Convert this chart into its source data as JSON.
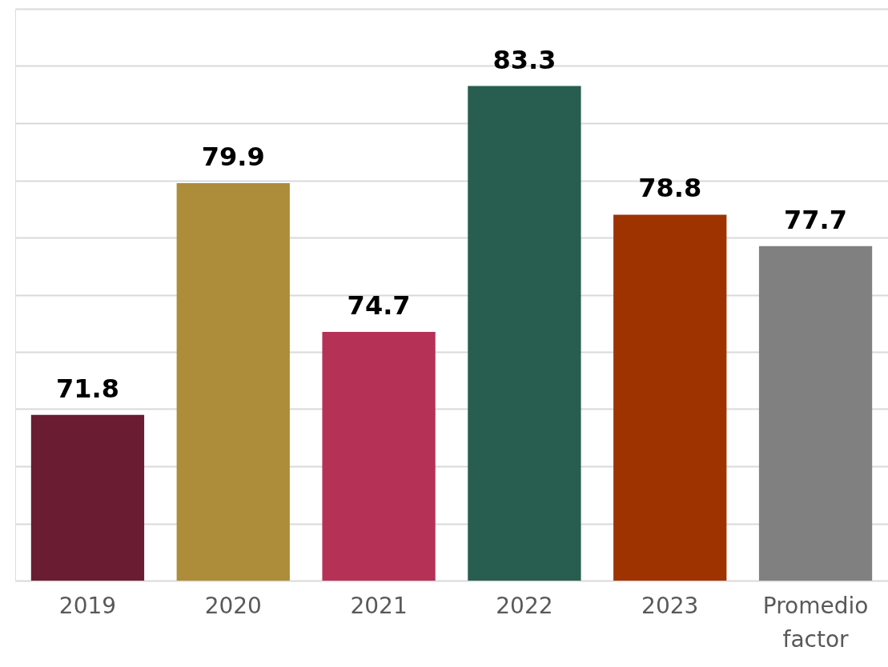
{
  "chart_data": {
    "type": "bar",
    "categories": [
      "2019",
      "2020",
      "2021",
      "2022",
      "2023",
      "Promedio factor"
    ],
    "values": [
      71.8,
      79.9,
      74.7,
      83.3,
      78.8,
      77.7
    ],
    "colors": [
      "#6a1c32",
      "#ad8d3a",
      "#b53156",
      "#285e4f",
      "#9e3300",
      "#808080"
    ],
    "ylim": [
      66,
      86
    ],
    "yticks": [
      {
        "value": 66,
        "label": null
      },
      {
        "value": 68,
        "label": null
      },
      {
        "value": 70,
        "label": null
      },
      {
        "value": 72,
        "label": null
      },
      {
        "value": 74,
        "label": null
      },
      {
        "value": 76,
        "label": null
      },
      {
        "value": 78,
        "label": null
      },
      {
        "value": 80,
        "label": null
      },
      {
        "value": 82,
        "label": null
      },
      {
        "value": 84,
        "label": null
      },
      {
        "value": 86,
        "label": null
      }
    ],
    "grid": "y",
    "data_labels": true,
    "tick_labels": "x"
  }
}
